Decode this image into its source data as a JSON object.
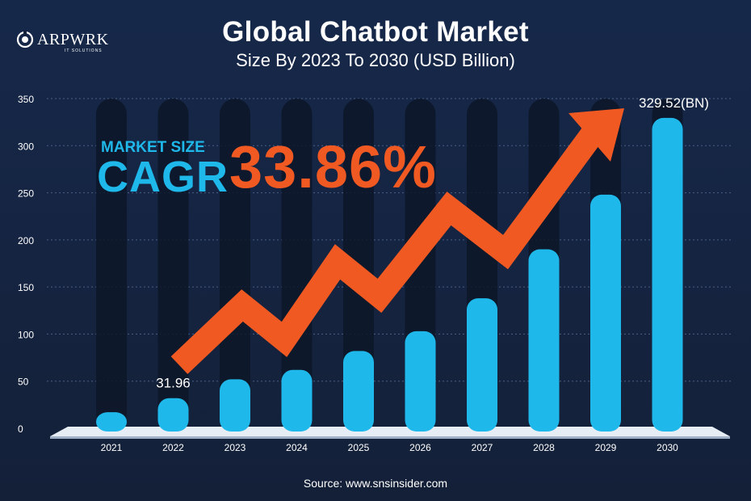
{
  "brand": {
    "name": "ARPWRK",
    "tagline": "IT SOLUTIONS"
  },
  "header": {
    "title": "Global Chatbot Market",
    "subtitle": "Size By 2023 To 2030 (USD Billion)"
  },
  "callout": {
    "label": "MARKET SIZE",
    "metric": "CAGR",
    "value": "33.86%"
  },
  "source": "Source: www.snsinsider.com",
  "colors": {
    "background": "#15233d",
    "bar": "#1fb8ea",
    "arrow": "#f05a22",
    "column": "#0d1628"
  },
  "chart_data": {
    "type": "bar",
    "categories": [
      "2021",
      "2022",
      "2023",
      "2024",
      "2025",
      "2026",
      "2027",
      "2028",
      "2029",
      "2030"
    ],
    "values": [
      17,
      31.96,
      52,
      62,
      82,
      103,
      138,
      190,
      248,
      329.52
    ],
    "ylim": [
      0,
      350
    ],
    "yticks": [
      0,
      50,
      100,
      150,
      200,
      250,
      300,
      350
    ],
    "data_labels": [
      {
        "category": "2022",
        "text": "31.96"
      },
      {
        "category": "2030",
        "text": "329.52(BN)"
      }
    ],
    "grid": true,
    "xlabel": "",
    "ylabel": ""
  }
}
